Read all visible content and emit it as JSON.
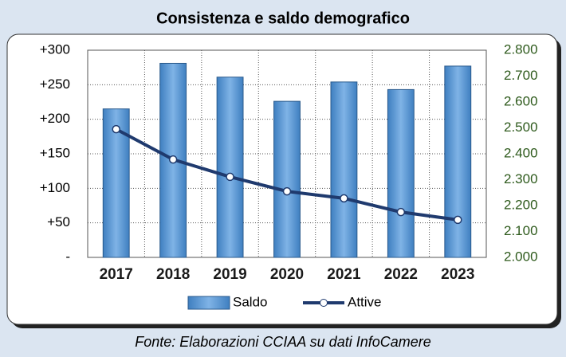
{
  "chart_data": {
    "type": "bar_line",
    "title": "Consistenza e saldo demografico",
    "caption": "Fonte: Elaborazioni CCIAA su dati InfoCamere",
    "categories": [
      "2017",
      "2018",
      "2019",
      "2020",
      "2021",
      "2022",
      "2023"
    ],
    "series": [
      {
        "name": "Saldo",
        "type": "bar",
        "color": "#5b9bd5",
        "values": [
          215,
          281,
          261,
          226,
          254,
          243,
          277
        ]
      },
      {
        "name": "Attive",
        "type": "line",
        "axis": "y2",
        "color": "#1f3a6e",
        "values": [
          2495,
          2378,
          2311,
          2255,
          2228,
          2175,
          2145
        ]
      }
    ],
    "ylim": [
      0,
      300
    ],
    "yticks": [
      {
        "value": 0,
        "label": "-"
      },
      {
        "value": 50,
        "label": "+50"
      },
      {
        "value": 100,
        "label": "+100"
      },
      {
        "value": 150,
        "label": "+150"
      },
      {
        "value": 200,
        "label": "+200"
      },
      {
        "value": 250,
        "label": "+250"
      },
      {
        "value": 300,
        "label": "+300"
      }
    ],
    "y2lim": [
      2000,
      2800
    ],
    "y2ticks": [
      {
        "value": 2000,
        "label": "2.000"
      },
      {
        "value": 2100,
        "label": "2.100"
      },
      {
        "value": 2200,
        "label": "2.200"
      },
      {
        "value": 2300,
        "label": "2.300"
      },
      {
        "value": 2400,
        "label": "2.400"
      },
      {
        "value": 2500,
        "label": "2.500"
      },
      {
        "value": 2600,
        "label": "2.600"
      },
      {
        "value": 2700,
        "label": "2.700"
      },
      {
        "value": 2800,
        "label": "2.800"
      }
    ],
    "grid": true
  }
}
